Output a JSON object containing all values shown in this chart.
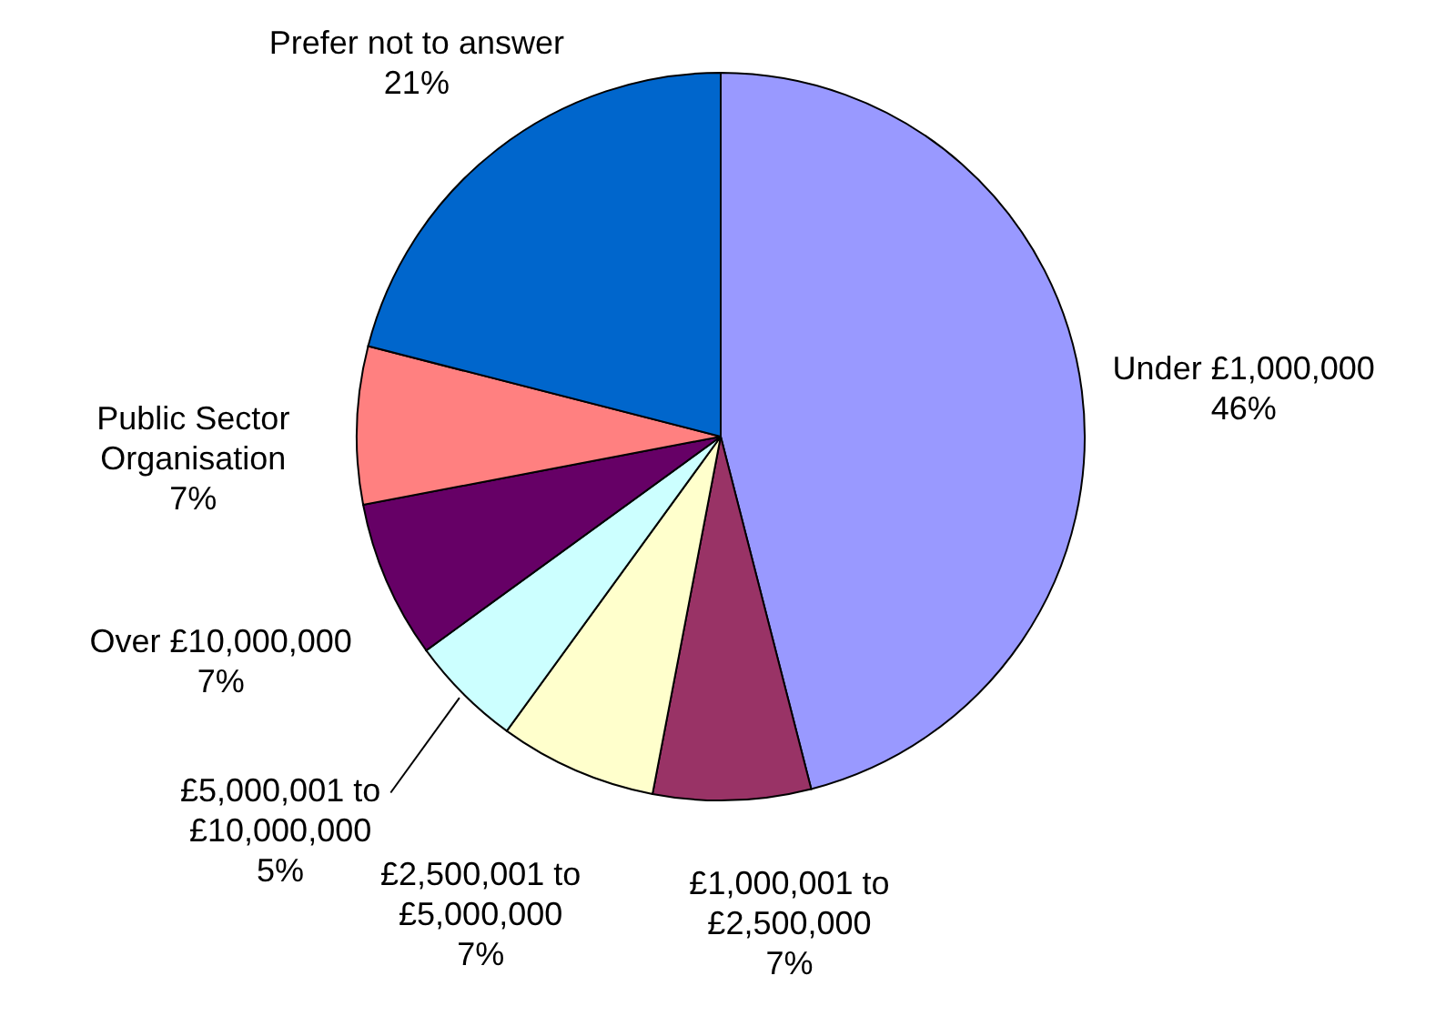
{
  "chart_data": {
    "type": "pie",
    "categories": [
      "Under £1,000,000",
      "£1,000,001 to\n£2,500,000",
      "£2,500,001 to\n£5,000,000",
      "£5,000,001 to\n£10,000,000",
      "Over £10,000,000",
      "Public Sector\nOrganisation",
      "Prefer not to answer"
    ],
    "values": [
      46,
      7,
      7,
      5,
      7,
      7,
      21
    ],
    "value_labels": [
      "46%",
      "7%",
      "7%",
      "5%",
      "7%",
      "7%",
      "21%"
    ],
    "colors": [
      "#9999ff",
      "#993366",
      "#ffffcc",
      "#ccffff",
      "#660066",
      "#ff8080",
      "#0066cc"
    ]
  }
}
